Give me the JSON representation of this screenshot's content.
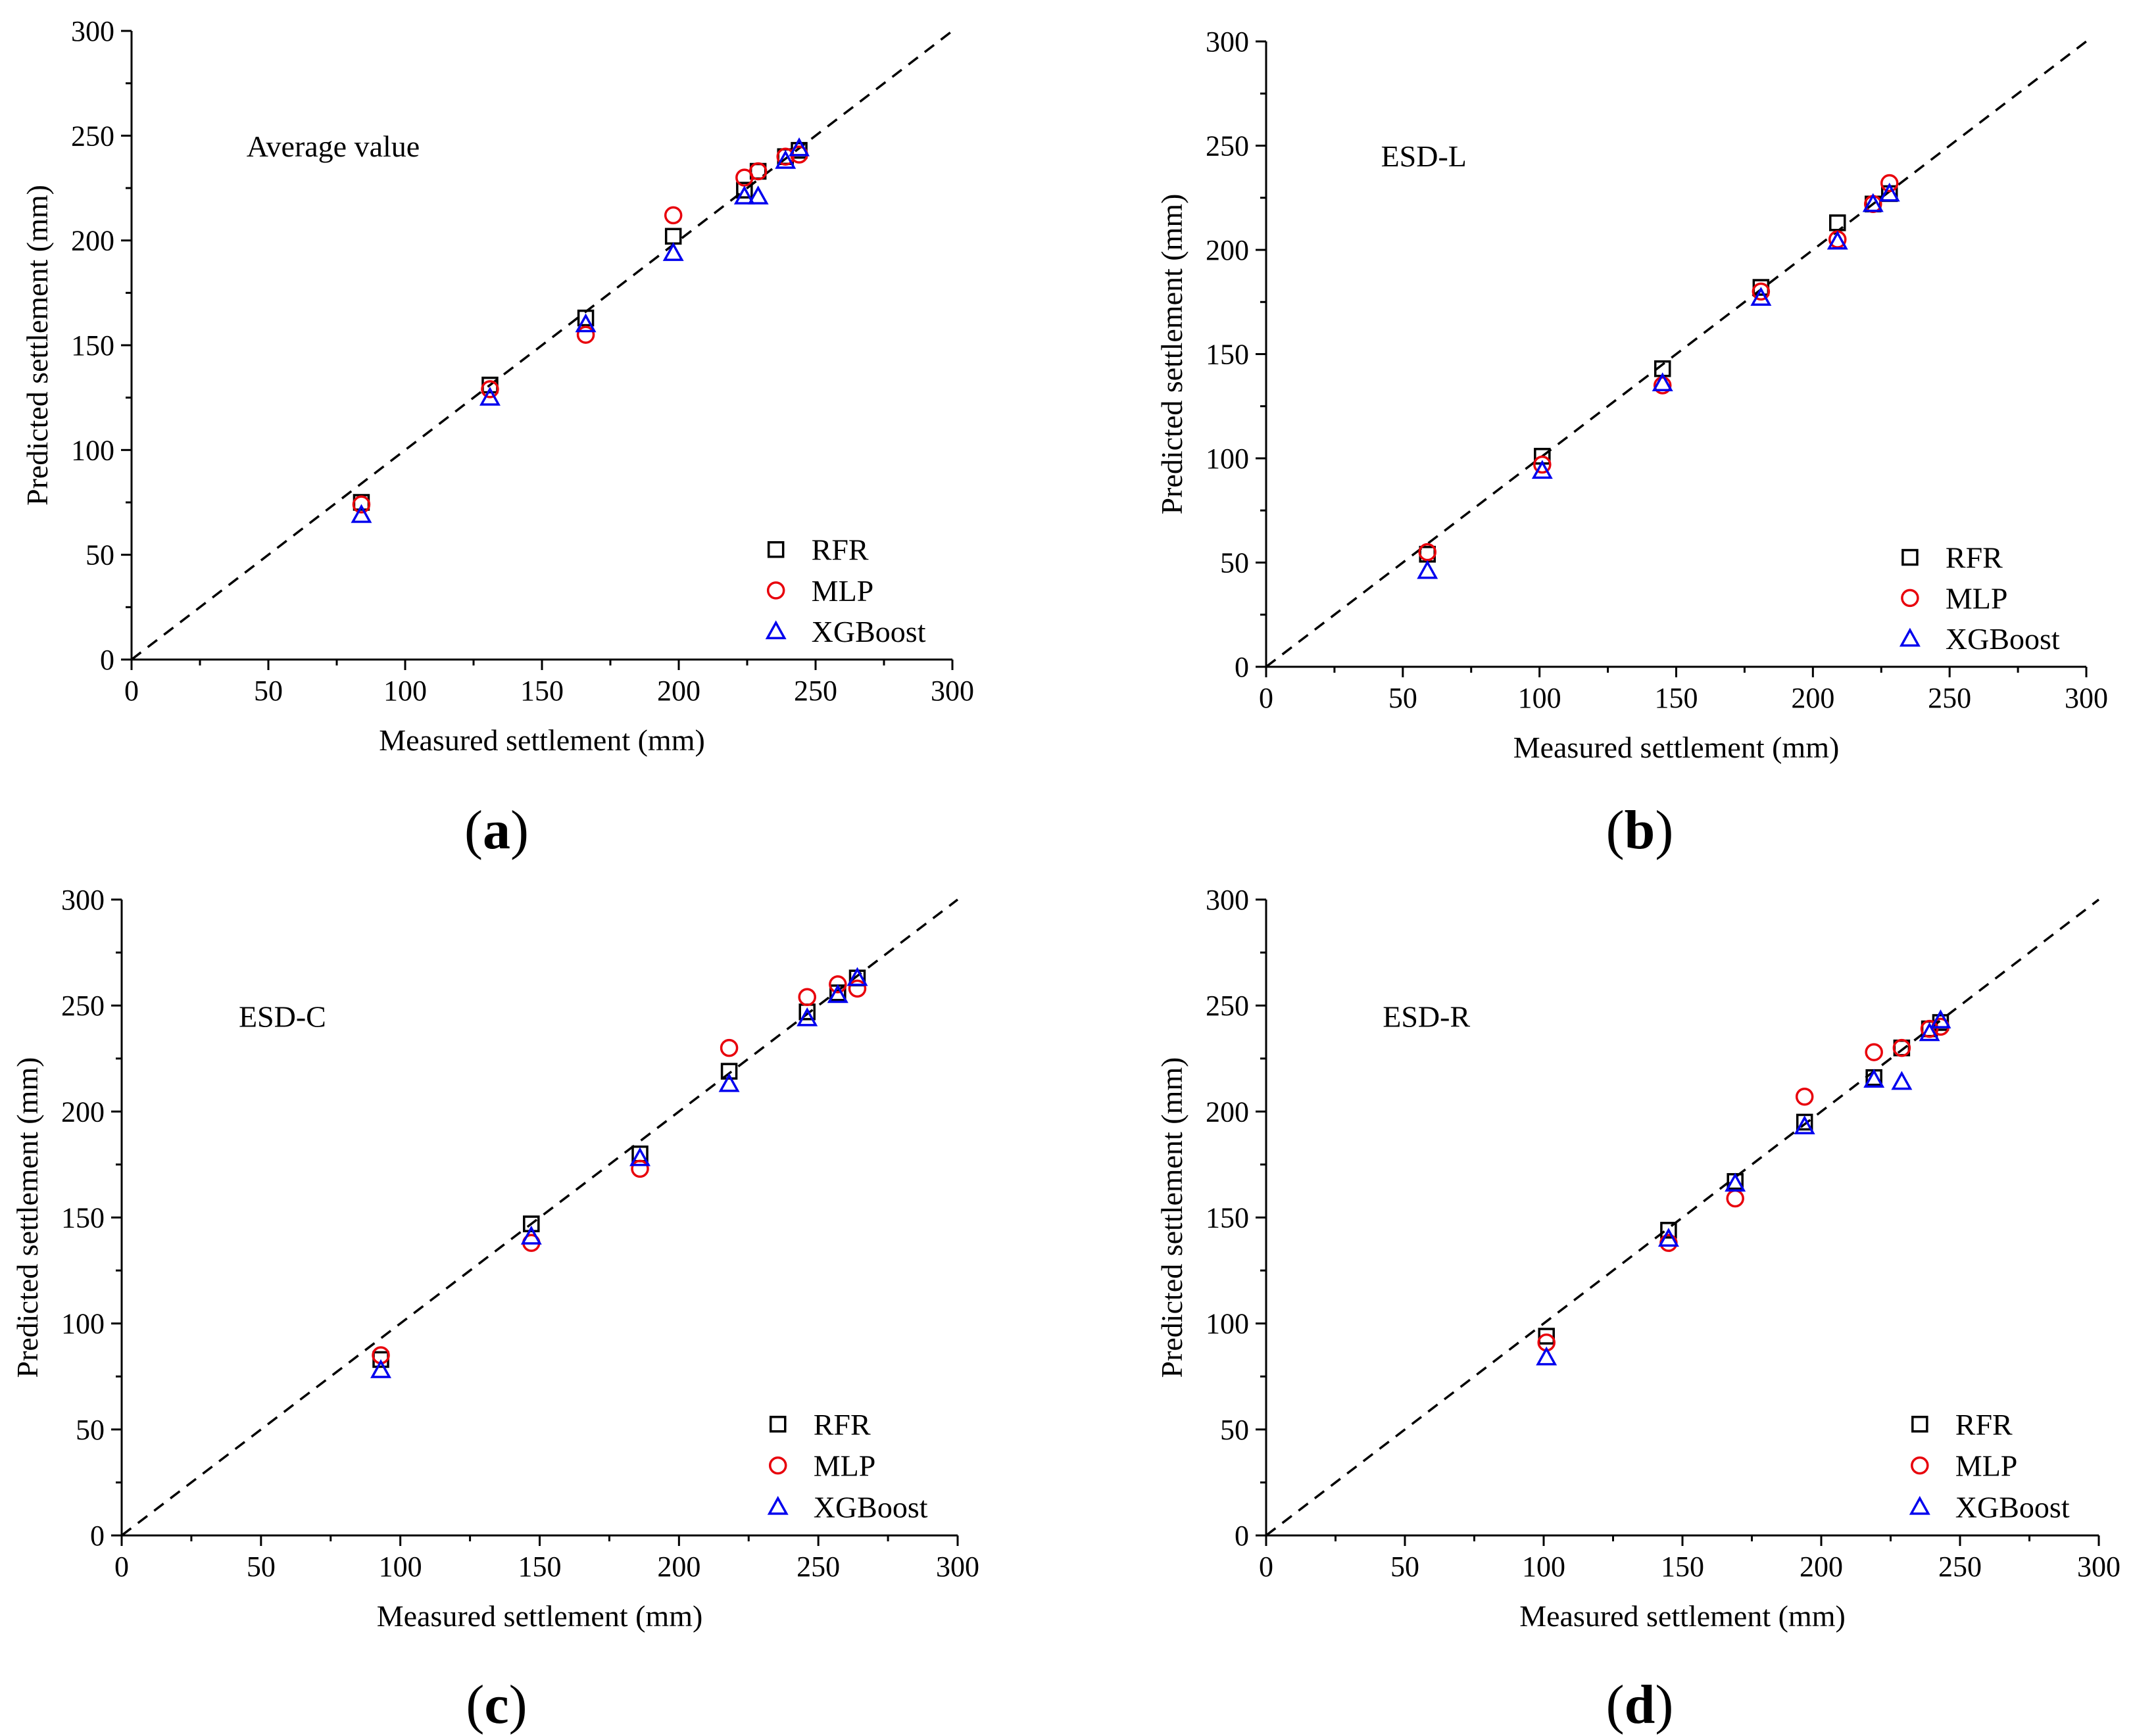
{
  "figure": {
    "panel_labels": [
      {
        "open": "(",
        "letter": "a",
        "close": ")"
      },
      {
        "open": "(",
        "letter": "b",
        "close": ")"
      },
      {
        "open": "(",
        "letter": "c",
        "close": ")"
      },
      {
        "open": "(",
        "letter": "d",
        "close": ")"
      }
    ]
  },
  "styles": {
    "RFR": {
      "marker": "square",
      "color": "#000000"
    },
    "MLP": {
      "marker": "circle",
      "color": "#e8000b"
    },
    "XGBoost": {
      "marker": "triangle",
      "color": "#0000ee"
    }
  },
  "chart_data": [
    {
      "type": "scatter",
      "annotation": "Average value",
      "xlabel": "Measured settlement (mm)",
      "ylabel": "Predicted settlement (mm)",
      "xlim": [
        0,
        300
      ],
      "ylim": [
        0,
        300
      ],
      "xticks": [
        0,
        50,
        100,
        150,
        200,
        250,
        300
      ],
      "yticks": [
        0,
        50,
        100,
        150,
        200,
        250,
        300
      ],
      "reference_line": "y = x",
      "legend_position": "bottom-right",
      "series": [
        {
          "name": "RFR",
          "x": [
            84,
            131,
            166,
            198,
            224,
            229,
            239,
            244
          ],
          "y": [
            75,
            131,
            163,
            202,
            224,
            233,
            240,
            243
          ]
        },
        {
          "name": "MLP",
          "x": [
            84,
            131,
            166,
            198,
            224,
            229,
            239,
            244
          ],
          "y": [
            74,
            129,
            155,
            212,
            230,
            233,
            240,
            241
          ]
        },
        {
          "name": "XGBoost",
          "x": [
            84,
            131,
            166,
            198,
            224,
            229,
            239,
            244
          ],
          "y": [
            69,
            125,
            160,
            194,
            221,
            221,
            238,
            244
          ]
        }
      ]
    },
    {
      "type": "scatter",
      "annotation": "ESD-L",
      "xlabel": "Measured settlement (mm)",
      "ylabel": "Predicted settlement (mm)",
      "xlim": [
        0,
        300
      ],
      "ylim": [
        0,
        300
      ],
      "xticks": [
        0,
        50,
        100,
        150,
        200,
        250,
        300
      ],
      "yticks": [
        0,
        50,
        100,
        150,
        200,
        250,
        300
      ],
      "reference_line": "y = x",
      "legend_position": "bottom-right",
      "series": [
        {
          "name": "RFR",
          "x": [
            59,
            101,
            145,
            181,
            209,
            222,
            228
          ],
          "y": [
            54,
            101,
            143,
            182,
            213,
            222,
            227
          ]
        },
        {
          "name": "MLP",
          "x": [
            59,
            101,
            145,
            181,
            209,
            222,
            228
          ],
          "y": [
            55,
            97,
            135,
            180,
            205,
            222,
            232
          ]
        },
        {
          "name": "XGBoost",
          "x": [
            59,
            101,
            145,
            181,
            209,
            222,
            228
          ],
          "y": [
            46,
            94,
            136,
            177,
            204,
            222,
            227
          ]
        }
      ]
    },
    {
      "type": "scatter",
      "annotation": "ESD-C",
      "xlabel": "Measured settlement (mm)",
      "ylabel": "Predicted settlement (mm)",
      "xlim": [
        0,
        300
      ],
      "ylim": [
        0,
        300
      ],
      "xticks": [
        0,
        50,
        100,
        150,
        200,
        250,
        300
      ],
      "yticks": [
        0,
        50,
        100,
        150,
        200,
        250,
        300
      ],
      "reference_line": "y = x",
      "legend_position": "bottom-right",
      "series": [
        {
          "name": "RFR",
          "x": [
            93,
            147,
            186,
            218,
            246,
            257,
            264
          ],
          "y": [
            83,
            147,
            180,
            219,
            247,
            256,
            263
          ]
        },
        {
          "name": "MLP",
          "x": [
            93,
            147,
            186,
            218,
            246,
            257,
            264
          ],
          "y": [
            85,
            138,
            173,
            230,
            254,
            260,
            258
          ]
        },
        {
          "name": "XGBoost",
          "x": [
            93,
            147,
            186,
            218,
            246,
            257,
            264
          ],
          "y": [
            78,
            141,
            178,
            213,
            244,
            255,
            263
          ]
        }
      ]
    },
    {
      "type": "scatter",
      "annotation": "ESD-R",
      "xlabel": "Measured settlement (mm)",
      "ylabel": "Predicted settlement (mm)",
      "xlim": [
        0,
        300
      ],
      "ylim": [
        0,
        300
      ],
      "xticks": [
        0,
        50,
        100,
        150,
        200,
        250,
        300
      ],
      "yticks": [
        0,
        50,
        100,
        150,
        200,
        250,
        300
      ],
      "reference_line": "y = x",
      "legend_position": "bottom-right",
      "series": [
        {
          "name": "RFR",
          "x": [
            101,
            145,
            169,
            194,
            219,
            229,
            239,
            243
          ],
          "y": [
            94,
            144,
            167,
            195,
            216,
            230,
            239,
            242
          ]
        },
        {
          "name": "MLP",
          "x": [
            101,
            145,
            169,
            194,
            219,
            229,
            239,
            243
          ],
          "y": [
            91,
            138,
            159,
            207,
            228,
            230,
            239,
            240
          ]
        },
        {
          "name": "XGBoost",
          "x": [
            101,
            145,
            169,
            194,
            219,
            229,
            239,
            243
          ],
          "y": [
            84,
            140,
            166,
            193,
            215,
            214,
            237,
            243
          ]
        }
      ]
    }
  ]
}
